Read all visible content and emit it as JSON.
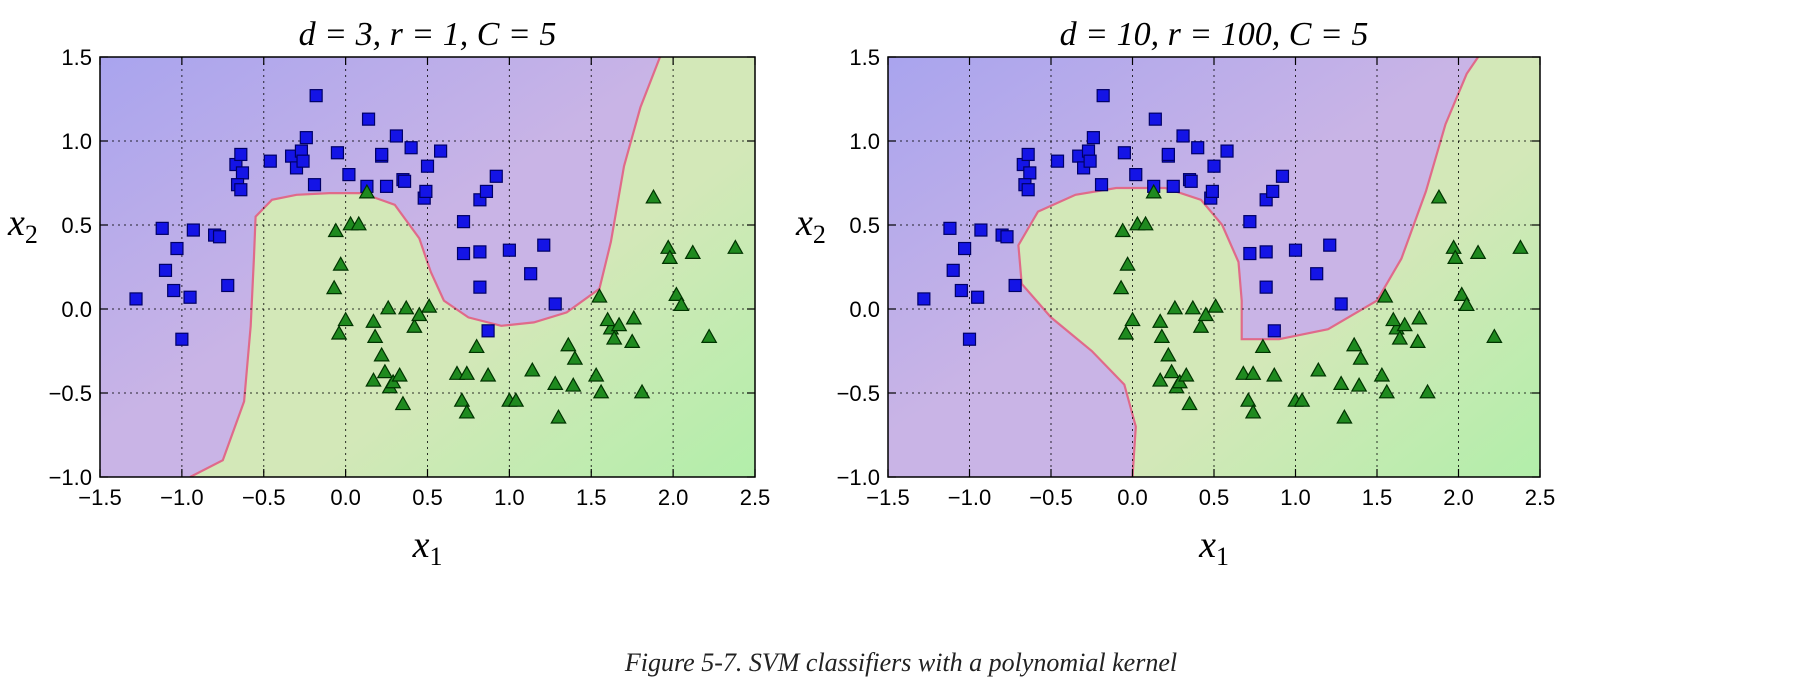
{
  "figure_caption": "Figure 5-7. SVM classifiers with a polynomial kernel",
  "colors": {
    "class0_fill": "#1414e6",
    "class0_stroke": "#000066",
    "class1_fill": "#1f8a1f",
    "class1_stroke": "#003300",
    "region_purple": "#c9b4e6",
    "region_purple_far": "#a9a4ee",
    "region_green": "#d3e8b8",
    "region_green_far": "#b2eeaa",
    "boundary": "#e06a8a"
  },
  "chart_data": [
    {
      "type": "scatter",
      "title": "d = 3, r = 1, C = 5",
      "title_parts": {
        "d": "3",
        "r": "1",
        "C": "5"
      },
      "xlabel": "x1",
      "ylabel": "x2",
      "xlim": [
        -1.5,
        2.5
      ],
      "ylim": [
        -1.0,
        1.5
      ],
      "xticks": [
        -1.5,
        -1.0,
        -0.5,
        0.0,
        0.5,
        1.0,
        1.5,
        2.0,
        2.5
      ],
      "yticks": [
        -1.0,
        -0.5,
        0.0,
        0.5,
        1.0,
        1.5
      ],
      "grid": true,
      "decision_boundary": [
        [
          -0.95,
          -1.0
        ],
        [
          -0.75,
          -0.9
        ],
        [
          -0.62,
          -0.55
        ],
        [
          -0.58,
          -0.1
        ],
        [
          -0.56,
          0.3
        ],
        [
          -0.55,
          0.55
        ],
        [
          -0.45,
          0.65
        ],
        [
          -0.3,
          0.68
        ],
        [
          -0.1,
          0.69
        ],
        [
          0.1,
          0.69
        ],
        [
          0.3,
          0.62
        ],
        [
          0.45,
          0.42
        ],
        [
          0.52,
          0.22
        ],
        [
          0.6,
          0.05
        ],
        [
          0.75,
          -0.05
        ],
        [
          0.95,
          -0.1
        ],
        [
          1.15,
          -0.08
        ],
        [
          1.35,
          -0.02
        ],
        [
          1.55,
          0.12
        ],
        [
          1.62,
          0.4
        ],
        [
          1.7,
          0.85
        ],
        [
          1.8,
          1.2
        ],
        [
          1.92,
          1.5
        ]
      ]
    },
    {
      "type": "scatter",
      "title": "d = 10, r = 100, C = 5",
      "title_parts": {
        "d": "10",
        "r": "100",
        "C": "5"
      },
      "xlabel": "x1",
      "ylabel": "x2",
      "xlim": [
        -1.5,
        2.5
      ],
      "ylim": [
        -1.0,
        1.5
      ],
      "xticks": [
        -1.5,
        -1.0,
        -0.5,
        0.0,
        0.5,
        1.0,
        1.5,
        2.0,
        2.5
      ],
      "yticks": [
        -1.0,
        -0.5,
        0.0,
        0.5,
        1.0,
        1.5
      ],
      "grid": true,
      "decision_boundary": [
        [
          0.0,
          -1.0
        ],
        [
          0.02,
          -0.7
        ],
        [
          -0.05,
          -0.45
        ],
        [
          -0.25,
          -0.25
        ],
        [
          -0.5,
          -0.05
        ],
        [
          -0.68,
          0.15
        ],
        [
          -0.7,
          0.38
        ],
        [
          -0.58,
          0.58
        ],
        [
          -0.35,
          0.68
        ],
        [
          -0.1,
          0.72
        ],
        [
          0.2,
          0.72
        ],
        [
          0.42,
          0.65
        ],
        [
          0.55,
          0.5
        ],
        [
          0.65,
          0.28
        ],
        [
          0.67,
          0.05
        ],
        [
          0.67,
          -0.18
        ],
        [
          0.9,
          -0.18
        ],
        [
          1.2,
          -0.12
        ],
        [
          1.5,
          0.05
        ],
        [
          1.65,
          0.3
        ],
        [
          1.8,
          0.7
        ],
        [
          1.92,
          1.1
        ],
        [
          2.05,
          1.4
        ],
        [
          2.12,
          1.5
        ]
      ]
    }
  ],
  "shared_points": {
    "class0": [
      [
        -1.28,
        0.06
      ],
      [
        -1.12,
        0.48
      ],
      [
        -1.1,
        0.23
      ],
      [
        -1.03,
        0.36
      ],
      [
        -1.05,
        0.11
      ],
      [
        -0.93,
        0.47
      ],
      [
        -0.95,
        0.07
      ],
      [
        -1.0,
        -0.18
      ],
      [
        -0.8,
        0.44
      ],
      [
        -0.77,
        0.43
      ],
      [
        -0.72,
        0.14
      ],
      [
        -0.67,
        0.86
      ],
      [
        -0.64,
        0.92
      ],
      [
        -0.63,
        0.81
      ],
      [
        -0.66,
        0.74
      ],
      [
        -0.64,
        0.71
      ],
      [
        -0.46,
        0.88
      ],
      [
        -0.33,
        0.91
      ],
      [
        -0.3,
        0.84
      ],
      [
        -0.27,
        0.94
      ],
      [
        -0.26,
        0.88
      ],
      [
        -0.24,
        1.02
      ],
      [
        -0.18,
        1.27
      ],
      [
        -0.19,
        0.74
      ],
      [
        -0.05,
        0.93
      ],
      [
        0.02,
        0.8
      ],
      [
        0.13,
        0.73
      ],
      [
        0.14,
        1.13
      ],
      [
        0.22,
        0.91
      ],
      [
        0.22,
        0.92
      ],
      [
        0.25,
        0.73
      ],
      [
        0.31,
        1.03
      ],
      [
        0.35,
        0.77
      ],
      [
        0.36,
        0.76
      ],
      [
        0.4,
        0.96
      ],
      [
        0.48,
        0.66
      ],
      [
        0.49,
        0.7
      ],
      [
        0.5,
        0.85
      ],
      [
        0.58,
        0.94
      ],
      [
        0.72,
        0.52
      ],
      [
        0.72,
        0.33
      ],
      [
        0.82,
        0.34
      ],
      [
        0.82,
        0.65
      ],
      [
        0.86,
        0.7
      ],
      [
        0.92,
        0.79
      ],
      [
        0.82,
        0.13
      ],
      [
        0.87,
        -0.13
      ],
      [
        1.0,
        0.35
      ],
      [
        1.13,
        0.21
      ],
      [
        1.21,
        0.38
      ],
      [
        1.28,
        0.03
      ]
    ],
    "class1": [
      [
        0.13,
        0.69
      ],
      [
        0.03,
        0.5
      ],
      [
        0.08,
        0.5
      ],
      [
        -0.06,
        0.46
      ],
      [
        -0.03,
        0.26
      ],
      [
        -0.07,
        0.12
      ],
      [
        0.0,
        -0.07
      ],
      [
        -0.04,
        -0.15
      ],
      [
        0.17,
        -0.08
      ],
      [
        0.18,
        -0.17
      ],
      [
        0.22,
        -0.28
      ],
      [
        0.24,
        -0.38
      ],
      [
        0.17,
        -0.43
      ],
      [
        0.27,
        -0.47
      ],
      [
        0.29,
        -0.44
      ],
      [
        0.33,
        -0.4
      ],
      [
        0.35,
        -0.57
      ],
      [
        0.42,
        -0.11
      ],
      [
        0.45,
        -0.04
      ],
      [
        0.26,
        0.0
      ],
      [
        0.37,
        0.0
      ],
      [
        0.51,
        0.01
      ],
      [
        0.68,
        -0.39
      ],
      [
        0.74,
        -0.39
      ],
      [
        0.71,
        -0.55
      ],
      [
        0.74,
        -0.62
      ],
      [
        0.8,
        -0.23
      ],
      [
        0.87,
        -0.4
      ],
      [
        1.0,
        -0.55
      ],
      [
        1.04,
        -0.55
      ],
      [
        1.14,
        -0.37
      ],
      [
        1.3,
        -0.65
      ],
      [
        1.28,
        -0.45
      ],
      [
        1.36,
        -0.22
      ],
      [
        1.4,
        -0.3
      ],
      [
        1.39,
        -0.46
      ],
      [
        1.53,
        -0.4
      ],
      [
        1.56,
        -0.5
      ],
      [
        1.55,
        0.07
      ],
      [
        1.62,
        -0.12
      ],
      [
        1.6,
        -0.07
      ],
      [
        1.67,
        -0.1
      ],
      [
        1.64,
        -0.18
      ],
      [
        1.76,
        -0.06
      ],
      [
        1.75,
        -0.2
      ],
      [
        1.81,
        -0.5
      ],
      [
        1.88,
        0.66
      ],
      [
        1.97,
        0.36
      ],
      [
        1.98,
        0.3
      ],
      [
        2.02,
        0.08
      ],
      [
        2.05,
        0.02
      ],
      [
        2.12,
        0.33
      ],
      [
        2.22,
        -0.17
      ],
      [
        2.38,
        0.36
      ]
    ]
  }
}
